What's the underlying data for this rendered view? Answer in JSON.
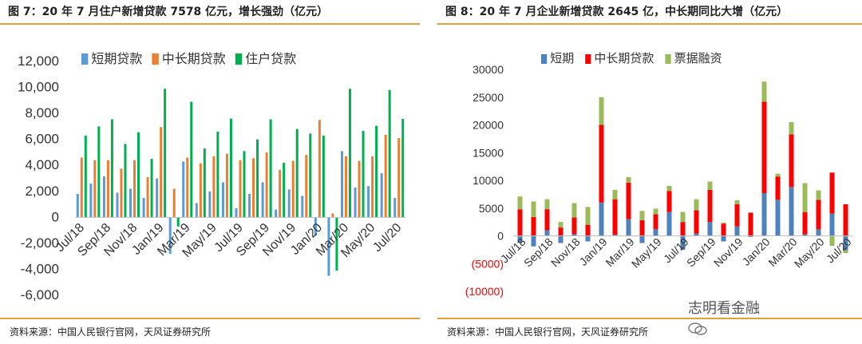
{
  "left": {
    "title": "图 7：20 年 7 月住户新增贷款 7578 亿元，增长强劲（亿元）",
    "source": "资料来源：中国人民银行官网，天风证券研究所"
  },
  "right": {
    "title": "图 8：20 年 7 月企业新增贷款 2645 亿，中长期同比大增（亿元）",
    "source": "资料来源：中国人民银行官网，天风证券研究所"
  },
  "watermark": "志明看金融",
  "chart_data": [
    {
      "type": "bar",
      "title": "图 7：20 年 7 月住户新增贷款 7578 亿元，增长强劲（亿元）",
      "categories": [
        "Jul/18",
        "Aug/18",
        "Sep/18",
        "Oct/18",
        "Nov/18",
        "Dec/18",
        "Jan/19",
        "Feb/19",
        "Mar/19",
        "Apr/19",
        "May/19",
        "Jun/19",
        "Jul/19",
        "Aug/19",
        "Sep/19",
        "Oct/19",
        "Nov/19",
        "Dec/19",
        "Jan/20",
        "Feb/20",
        "Mar/20",
        "Apr/20",
        "May/20",
        "Jun/20",
        "Jul/20"
      ],
      "tick_labels": [
        "Jul/18",
        "Sep/18",
        "Nov/18",
        "Jan/19",
        "Mar/19",
        "May/19",
        "Jul/19",
        "Sep/19",
        "Nov/19",
        "Jan/20",
        "Mar/20",
        "May/20",
        "Jul/20"
      ],
      "series": [
        {
          "name": "短期贷款",
          "color": "#5b9bd5",
          "values": [
            1800,
            2600,
            3150,
            1900,
            2200,
            1500,
            3000,
            -2800,
            4300,
            1100,
            2000,
            2700,
            700,
            1800,
            2700,
            600,
            2150,
            1650,
            -1400,
            -4500,
            5100,
            2300,
            2400,
            3400,
            1500
          ]
        },
        {
          "name": "中长期贷款",
          "color": "#ed7d31",
          "values": [
            4600,
            4400,
            4400,
            3750,
            4400,
            3100,
            6950,
            2200,
            4600,
            4150,
            4700,
            4900,
            4400,
            4550,
            5000,
            3650,
            4350,
            4800,
            7500,
            300,
            4700,
            4350,
            4700,
            6350,
            6100
          ]
        },
        {
          "name": "住户贷款",
          "color": "#00b050",
          "values": [
            6300,
            7000,
            7550,
            5650,
            6550,
            4500,
            9900,
            -700,
            8900,
            5300,
            6600,
            7600,
            5100,
            6000,
            7550,
            4200,
            6800,
            6450,
            6300,
            -4100,
            9900,
            6650,
            7050,
            9800,
            7578
          ]
        }
      ],
      "ylim": [
        -6000,
        12000
      ],
      "yticks": [
        "12,000",
        "10,000",
        "8,000",
        "6,000",
        "4,000",
        "2,000",
        "0",
        "-2,000",
        "-4,000",
        "-6,000"
      ],
      "legend": "top"
    },
    {
      "type": "bar",
      "stacked": true,
      "title": "图 8：20 年 7 月企业新增贷款 2645 亿，中长期同比大增（亿元）",
      "categories": [
        "Jul/18",
        "Aug/18",
        "Sep/18",
        "Oct/18",
        "Nov/18",
        "Dec/18",
        "Jan/19",
        "Feb/19",
        "Mar/19",
        "Apr/19",
        "May/19",
        "Jun/19",
        "Jul/19",
        "Aug/19",
        "Sep/19",
        "Oct/19",
        "Nov/19",
        "Dec/19",
        "Jan/20",
        "Feb/20",
        "Mar/20",
        "Apr/20",
        "May/20",
        "Jun/20",
        "Jul/20"
      ],
      "tick_labels": [
        "Jul/18",
        "Sep/18",
        "Nov/18",
        "Jan/19",
        "Mar/19",
        "May/19",
        "Jul/19",
        "Sep/19",
        "Nov/19",
        "Jan/20",
        "Mar/20",
        "May/20",
        "Jul/20"
      ],
      "series": [
        {
          "name": "短期",
          "color": "#4f81bd",
          "values": [
            -1300,
            -1900,
            1000,
            -1300,
            300,
            -1000,
            6000,
            200,
            3000,
            -1300,
            1200,
            4300,
            -2500,
            400,
            2500,
            -1000,
            1700,
            -200,
            7700,
            6500,
            8800,
            300,
            1200,
            4000,
            -2600
          ]
        },
        {
          "name": "中长期贷款",
          "color": "#ff0000",
          "values": [
            4800,
            3400,
            3800,
            1500,
            3000,
            2000,
            14000,
            6400,
            6600,
            2800,
            2700,
            3800,
            2500,
            4200,
            5800,
            2200,
            4000,
            4200,
            16500,
            4200,
            9500,
            4000,
            5300,
            7400,
            5700
          ]
        },
        {
          "name": "票据融资",
          "color": "#9bbb59",
          "values": [
            2300,
            2800,
            1800,
            1000,
            2600,
            3200,
            5000,
            1700,
            1000,
            1700,
            1000,
            900,
            1800,
            2000,
            1500,
            200,
            700,
            0,
            3600,
            500,
            2200,
            5200,
            1700,
            -1800,
            -500
          ]
        }
      ],
      "ylim": [
        -10000,
        30000
      ],
      "yticks": [
        "30000",
        "25000",
        "20000",
        "15000",
        "10000",
        "5000",
        "0",
        "(5000)",
        "(10000)"
      ],
      "legend": "top"
    }
  ]
}
